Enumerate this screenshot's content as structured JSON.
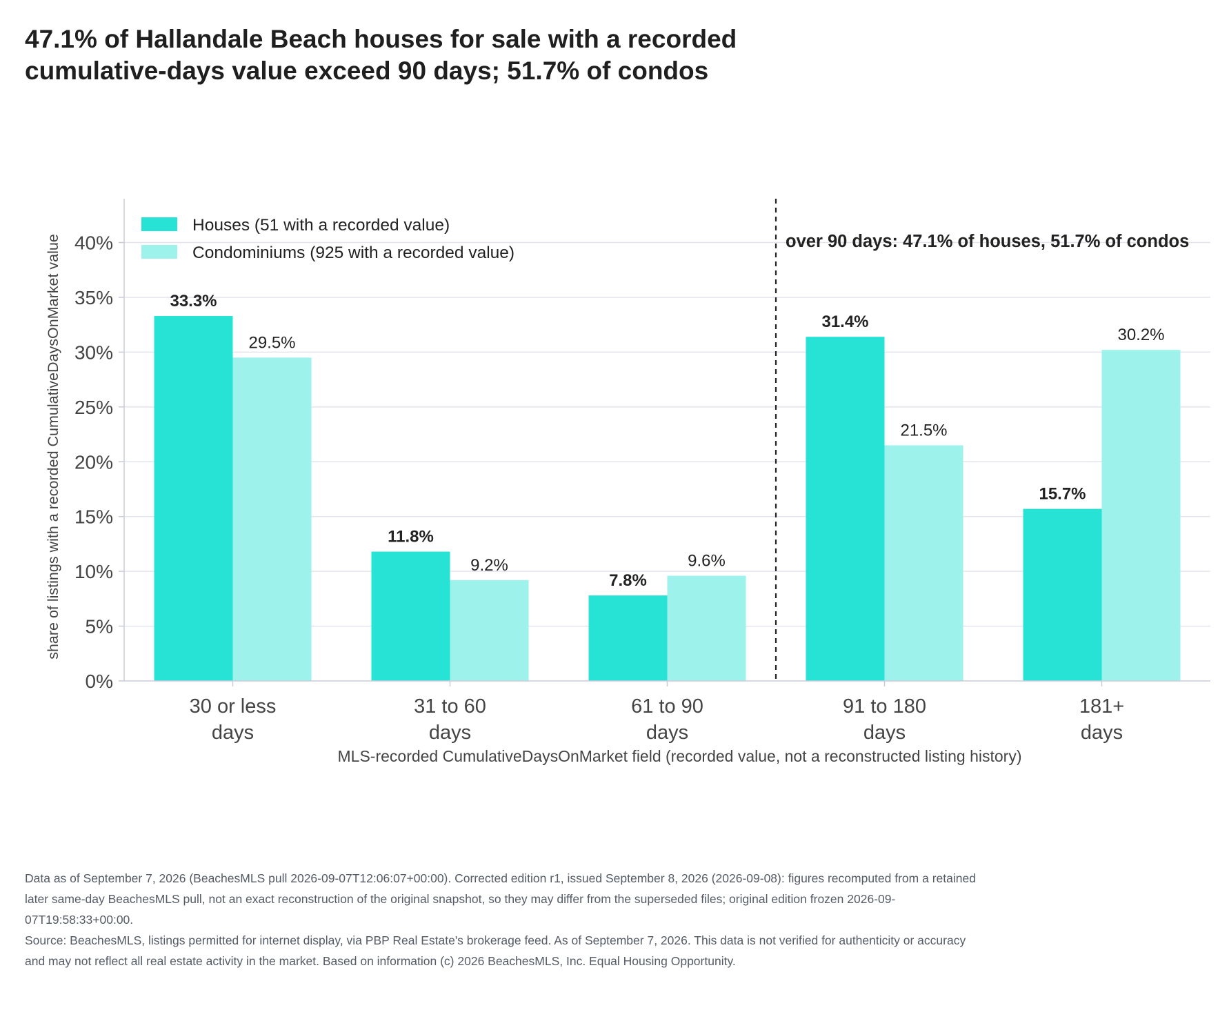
{
  "title_lines": [
    "47.1% of Hallandale Beach houses for sale with a recorded",
    "cumulative-days value exceed 90 days; 51.7% of condos"
  ],
  "chart_data": {
    "type": "bar",
    "title": "47.1% of Hallandale Beach houses for sale with a recorded cumulative-days value exceed 90 days; 51.7% of condos",
    "categories": [
      [
        "30 or less",
        "days"
      ],
      [
        "31 to 60",
        "days"
      ],
      [
        "61 to 90",
        "days"
      ],
      [
        "91 to 180",
        "days"
      ],
      [
        "181+",
        "days"
      ]
    ],
    "series": [
      {
        "name": "Houses (51 with a recorded value)",
        "values": [
          33.3,
          11.8,
          7.8,
          31.4,
          15.7
        ],
        "labels": [
          "33.3%",
          "11.8%",
          "7.8%",
          "31.4%",
          "15.7%"
        ],
        "color": "#26e3d6",
        "label_bold": true
      },
      {
        "name": "Condominiums (925 with a recorded value)",
        "values": [
          29.5,
          9.2,
          9.6,
          21.5,
          30.2
        ],
        "labels": [
          "29.5%",
          "9.2%",
          "9.6%",
          "21.5%",
          "30.2%"
        ],
        "color": "#9df2ec",
        "label_bold": false
      }
    ],
    "xlabel": "MLS-recorded CumulativeDaysOnMarket field (recorded value, not a reconstructed listing history)",
    "ylabel": "share of listings with a recorded CumulativeDaysOnMarket value",
    "ylim": [
      0,
      44
    ],
    "yticks": [
      0,
      5,
      10,
      15,
      20,
      25,
      30,
      35,
      40
    ],
    "ytick_labels": [
      "0%",
      "5%",
      "10%",
      "15%",
      "20%",
      "25%",
      "30%",
      "35%",
      "40%"
    ],
    "grid": true,
    "legend": "top-left",
    "annotation": {
      "text": "over 90 days: 47.1% of houses, 51.7% of condos",
      "divider_between_categories": [
        2,
        3
      ],
      "divider_style": "dashed"
    },
    "colors": {
      "grid": "#e3e4ec",
      "axis": "#c9cbd9",
      "text": "#222222",
      "tick_text": "#444444"
    }
  },
  "footnote": [
    "Data as of September 7, 2026 (BeachesMLS pull 2026-09-07T12:06:07+00:00). Corrected edition r1, issued September 8, 2026 (2026-09-08): figures recomputed from a retained later same-day BeachesMLS pull, not an exact reconstruction of the original snapshot, so they may differ from the superseded files; original edition frozen 2026-09-07T19:58:33+00:00.",
    "Source: BeachesMLS, listings permitted for internet display, via PBP Real Estate's brokerage feed. As of September 7, 2026. This data is not verified for authenticity or accuracy and may not reflect all real estate activity in the market. Based on information (c) 2026 BeachesMLS, Inc. Equal Housing Opportunity."
  ]
}
